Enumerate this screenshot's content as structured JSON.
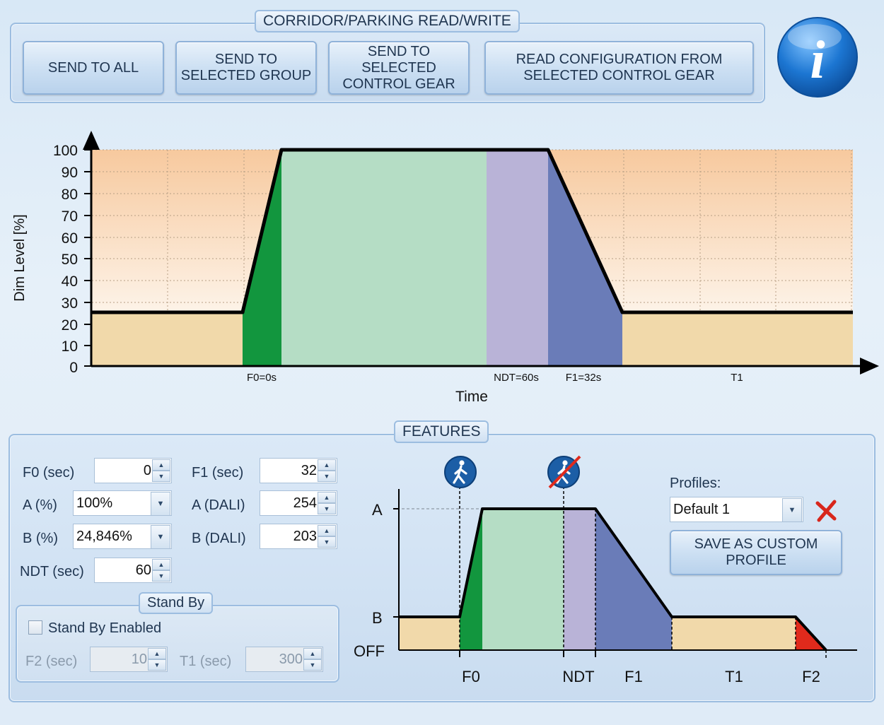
{
  "top": {
    "title": "CORRIDOR/PARKING READ/WRITE",
    "buttons": {
      "send_all": "SEND TO ALL",
      "send_group": "SEND TO\nSELECTED GROUP",
      "send_gear": "SEND TO\nSELECTED\nCONTROL GEAR",
      "read_config": "READ CONFIGURATION FROM\nSELECTED CONTROL GEAR"
    },
    "info_icon": "info-icon",
    "info_glyph": "i"
  },
  "chart_data": {
    "type": "area",
    "ylabel": "Dim Level [%]",
    "xlabel": "Time",
    "ylim": [
      0,
      100
    ],
    "yticks": [
      "100",
      "90",
      "80",
      "70",
      "60",
      "50",
      "40",
      "30",
      "20",
      "10",
      "0"
    ],
    "x_markers": [
      "F0=0s",
      "NDT=60s",
      "F1=32s",
      "T1"
    ],
    "profile": {
      "base_level": 25,
      "high_level": 100,
      "phases": [
        "Base",
        "F0 ramp up",
        "Hold",
        "NDT",
        "F1 ramp down",
        "T1"
      ]
    },
    "colors": {
      "base": "#f1d9aa",
      "f0": "#12963e",
      "hold": "#b5ddc5",
      "ndt": "#b9b3d7",
      "f1": "#6a7cb8"
    }
  },
  "features": {
    "title": "FEATURES",
    "f0": {
      "label": "F0 (sec)",
      "value": "0"
    },
    "f1": {
      "label": "F1 (sec)",
      "value": "32"
    },
    "a_pct": {
      "label": "A (%)",
      "value": "100%"
    },
    "a_dali": {
      "label": "A (DALI)",
      "value": "254"
    },
    "b_pct": {
      "label": "B (%)",
      "value": "24,846%"
    },
    "b_dali": {
      "label": "B (DALI)",
      "value": "203"
    },
    "ndt": {
      "label": "NDT (sec)",
      "value": "60"
    },
    "standby": {
      "title": "Stand By",
      "checkbox_label": "Stand By Enabled",
      "checked": false,
      "f2": {
        "label": "F2 (sec)",
        "value": "10"
      },
      "t1": {
        "label": "T1 (sec)",
        "value": "300"
      }
    },
    "diagram": {
      "y_labels": {
        "a": "A",
        "b": "B",
        "off": "OFF"
      },
      "x_labels": {
        "f0": "F0",
        "ndt": "NDT",
        "f1": "F1",
        "t1": "T1",
        "f2": "F2"
      },
      "icons": [
        "person-walking-icon",
        "person-no-motion-icon"
      ],
      "colors": {
        "f2": "#e02a1c"
      }
    },
    "profiles": {
      "label": "Profiles:",
      "selected": "Default 1",
      "save_button": "SAVE AS CUSTOM\nPROFILE"
    }
  }
}
